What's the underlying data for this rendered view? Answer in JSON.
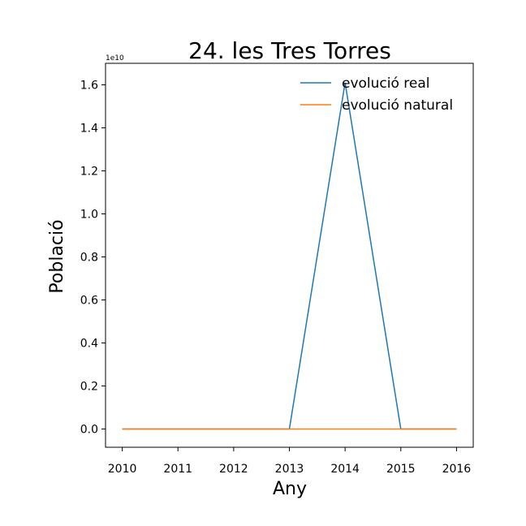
{
  "chart_data": {
    "type": "line",
    "title": "24. les Tres Torres",
    "xlabel": "Any",
    "ylabel": "Població",
    "y_multiplier_label": "1e10",
    "x": [
      2010,
      2011,
      2012,
      2013,
      2014,
      2015,
      2016
    ],
    "x_tick_labels": [
      "2010",
      "2011",
      "2012",
      "2013",
      "2014",
      "2015",
      "2016"
    ],
    "y_ticks": [
      0.0,
      0.2,
      0.4,
      0.6,
      0.8,
      1.0,
      1.2,
      1.4,
      1.6
    ],
    "y_tick_labels": [
      "0.0",
      "0.2",
      "0.4",
      "0.6",
      "0.8",
      "1.0",
      "1.2",
      "1.4",
      "1.6"
    ],
    "xlim": [
      2009.7,
      2016.3
    ],
    "ylim": [
      -0.085,
      1.7
    ],
    "grid": false,
    "legend_position": "top-right",
    "series": [
      {
        "name": "evolució real",
        "color": "#1f77b4",
        "values": [
          0.0,
          0.0,
          0.0,
          0.0,
          1.61,
          0.0,
          0.0
        ]
      },
      {
        "name": "evolució natural",
        "color": "#ff7f0e",
        "values": [
          0.0,
          0.0,
          0.0,
          0.0,
          0.0,
          0.0,
          0.0
        ]
      }
    ]
  }
}
